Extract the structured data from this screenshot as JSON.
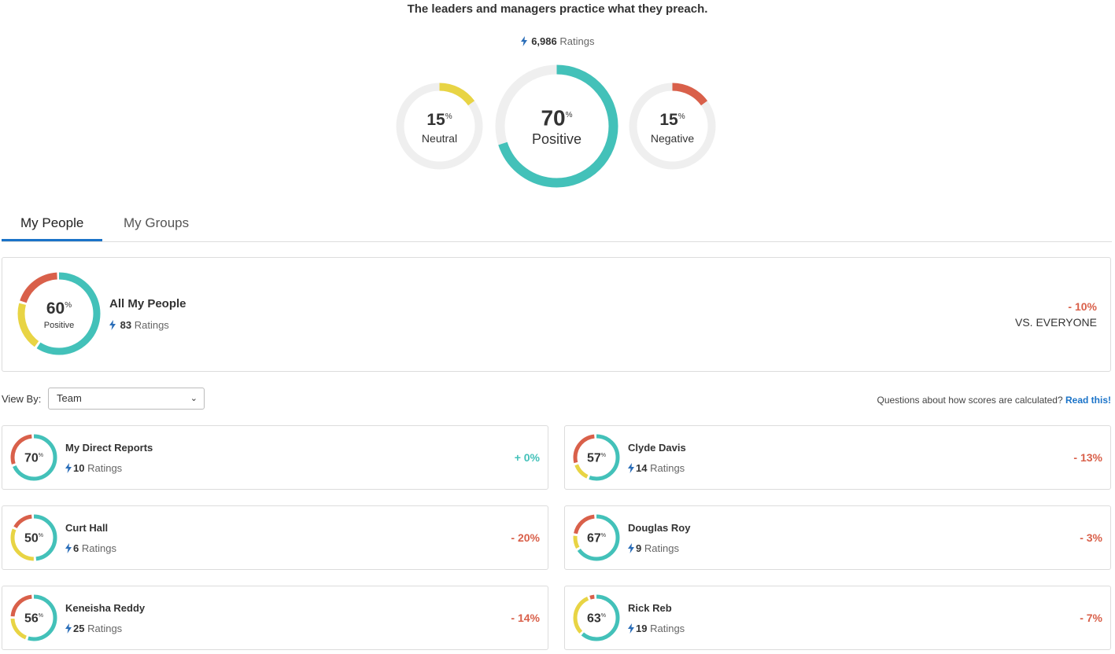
{
  "header": {
    "headline": "The leaders and managers practice what they preach.",
    "total_ratings": "6,986",
    "ratings_word": "Ratings"
  },
  "overall": {
    "neutral": {
      "value": "15",
      "label": "Neutral",
      "pct": 15
    },
    "positive": {
      "value": "70",
      "label": "Positive",
      "pct": 70
    },
    "negative": {
      "value": "15",
      "label": "Negative",
      "pct": 15
    }
  },
  "colors": {
    "positive": "#43c1b9",
    "neutral": "#e8d444",
    "negative": "#d9604a",
    "track": "#efefef",
    "delta_positive": "#43c1b9",
    "delta_negative": "#d9604a",
    "link": "#1a73c8"
  },
  "tabs": [
    {
      "label": "My People",
      "active": true
    },
    {
      "label": "My Groups",
      "active": false
    }
  ],
  "summary": {
    "positive": "60",
    "positive_label": "Positive",
    "title": "All My People",
    "ratings": "83",
    "ratings_word": "Ratings",
    "delta": "- 10%",
    "vs_label": "VS. EVERYONE",
    "breakdown": {
      "positive": 60,
      "neutral": 20,
      "negative": 20
    }
  },
  "view_by": {
    "label": "View By:",
    "selected": "Team"
  },
  "help": {
    "text": "Questions about how scores are calculated?",
    "link": "Read this!"
  },
  "people": [
    {
      "name": "My Direct Reports",
      "score": "70",
      "ratings": "10",
      "ratings_word": "Ratings",
      "delta": "+ 0%",
      "delta_sign": "positive",
      "breakdown": {
        "positive": 70,
        "neutral": 0,
        "negative": 30
      }
    },
    {
      "name": "Clyde Davis",
      "score": "57",
      "ratings": "14",
      "ratings_word": "Ratings",
      "delta": "- 13%",
      "delta_sign": "negative",
      "breakdown": {
        "positive": 57,
        "neutral": 14,
        "negative": 29
      }
    },
    {
      "name": "Curt Hall",
      "score": "50",
      "ratings": "6",
      "ratings_word": "Ratings",
      "delta": "- 20%",
      "delta_sign": "negative",
      "breakdown": {
        "positive": 50,
        "neutral": 33,
        "negative": 17
      }
    },
    {
      "name": "Douglas Roy",
      "score": "67",
      "ratings": "9",
      "ratings_word": "Ratings",
      "delta": "- 3%",
      "delta_sign": "negative",
      "breakdown": {
        "positive": 67,
        "neutral": 11,
        "negative": 22
      }
    },
    {
      "name": "Keneisha Reddy",
      "score": "56",
      "ratings": "25",
      "ratings_word": "Ratings",
      "delta": "- 14%",
      "delta_sign": "negative",
      "breakdown": {
        "positive": 56,
        "neutral": 20,
        "negative": 24
      }
    },
    {
      "name": "Rick Reb",
      "score": "63",
      "ratings": "19",
      "ratings_word": "Ratings",
      "delta": "- 7%",
      "delta_sign": "negative",
      "breakdown": {
        "positive": 63,
        "neutral": 32,
        "negative": 5
      }
    }
  ]
}
